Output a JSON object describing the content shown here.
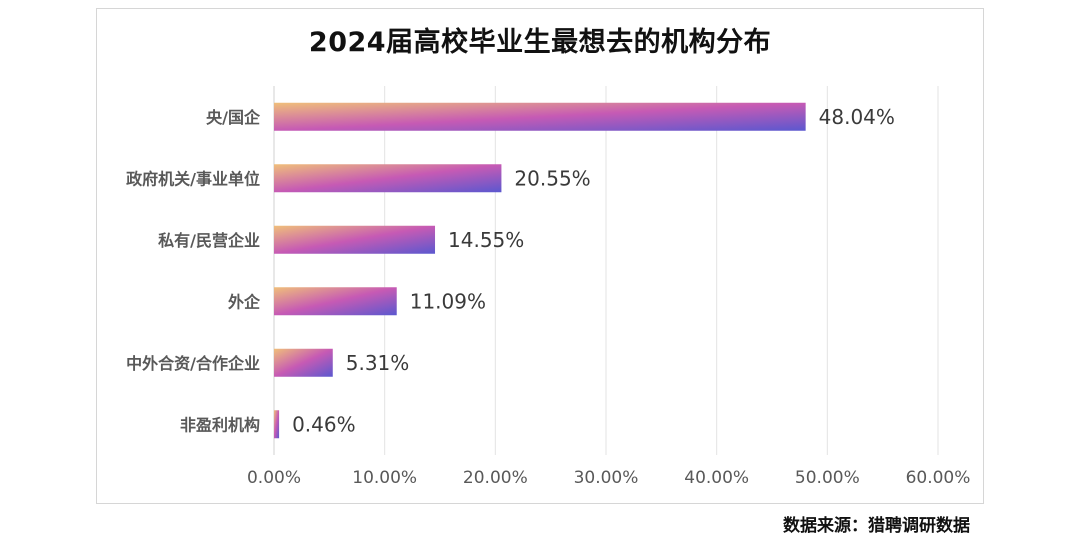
{
  "chart_data": {
    "type": "bar",
    "orientation": "horizontal",
    "title": "2024届高校毕业生最想去的机构分布",
    "categories": [
      "央/国企",
      "政府机关/事业单位",
      "私有/民营企业",
      "外企",
      "中外合资/合作企业",
      "非盈利机构"
    ],
    "values": [
      48.04,
      20.55,
      14.55,
      11.09,
      5.31,
      0.46
    ],
    "data_labels": [
      "48.04%",
      "20.55%",
      "14.55%",
      "11.09%",
      "5.31%",
      "0.46%"
    ],
    "x_ticks": [
      "0.00%",
      "10.00%",
      "20.00%",
      "30.00%",
      "40.00%",
      "50.00%",
      "60.00%"
    ],
    "xlim": [
      0,
      60
    ],
    "xlabel": "",
    "ylabel": "",
    "grid": "vertical",
    "legend": "none",
    "colors": {
      "bar_gradient_start": "#f0bf7a",
      "bar_gradient_mid": "#c65ab4",
      "bar_gradient_end": "#5b58cf",
      "gridline": "#e3e3e3",
      "axis_text": "#595959"
    }
  },
  "source": "数据来源：猎聘调研数据"
}
